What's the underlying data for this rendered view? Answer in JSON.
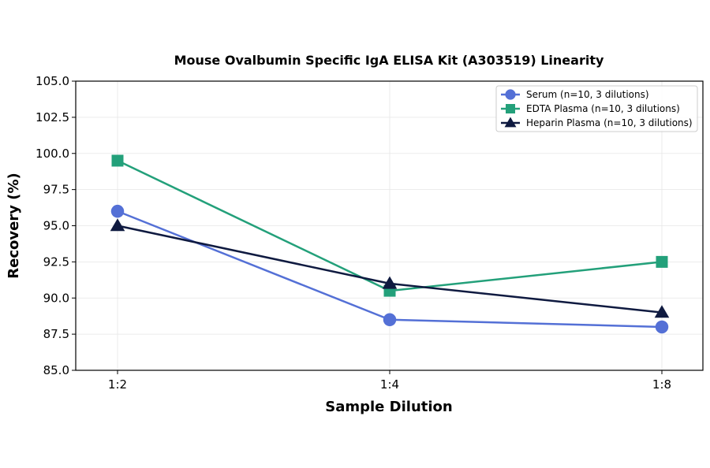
{
  "chart_data": {
    "type": "line",
    "title": "Mouse Ovalbumin Specific IgA ELISA Kit (A303519) Linearity",
    "xlabel": "Sample Dilution",
    "ylabel": "Recovery (%)",
    "categories": [
      "1:2",
      "1:4",
      "1:8"
    ],
    "ylim": [
      85.0,
      105.0
    ],
    "yticks": [
      "85.0",
      "87.5",
      "90.0",
      "92.5",
      "95.0",
      "97.5",
      "100.0",
      "102.5",
      "105.0"
    ],
    "grid": true,
    "legend_position": "top-right",
    "series": [
      {
        "name": "Serum (n=10, 3 dilutions)",
        "values": [
          96.0,
          88.5,
          88.0
        ],
        "color": "#5470d6",
        "marker": "circle"
      },
      {
        "name": "EDTA Plasma (n=10, 3 dilutions)",
        "values": [
          99.5,
          90.5,
          92.5
        ],
        "color": "#23a07a",
        "marker": "square"
      },
      {
        "name": "Heparin Plasma (n=10, 3 dilutions)",
        "values": [
          95.0,
          91.0,
          89.0
        ],
        "color": "#0f1a40",
        "marker": "triangle"
      }
    ]
  }
}
